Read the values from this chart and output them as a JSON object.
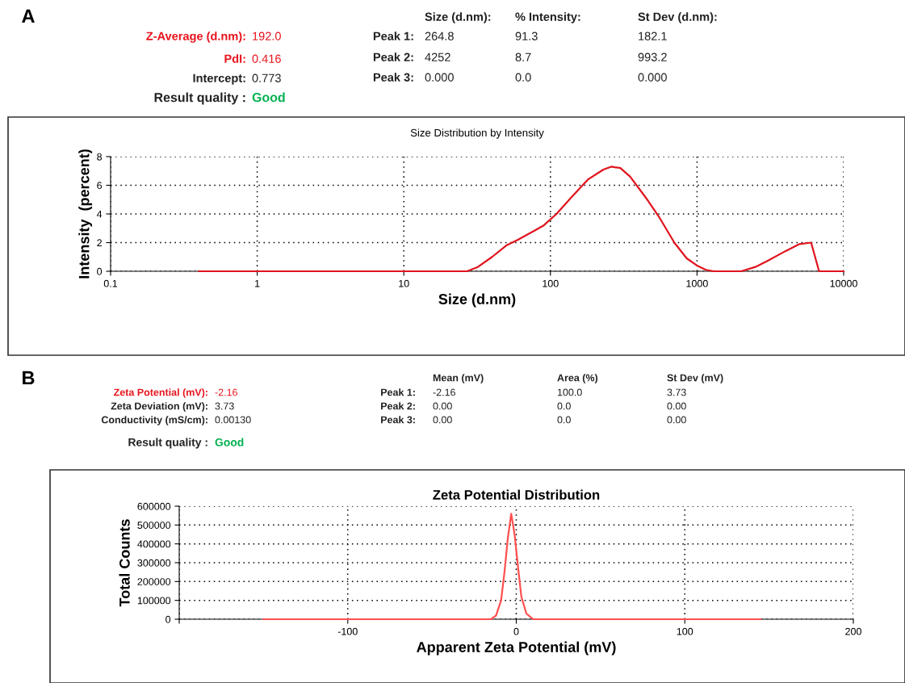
{
  "chart_data": [
    {
      "type": "other",
      "title": "A",
      "annotations": [
        "Z-Average (d.nm):",
        "192.0",
        "PdI:",
        "0.416",
        "Intercept:",
        "0.773",
        "Result quality :",
        "Good",
        "Size (d.nm):",
        "% Intensity:",
        "St Dev (d.nm):",
        "Peak 1:",
        "264.8",
        "91.3",
        "182.1",
        "Peak 2:",
        "4252",
        "8.7",
        "993.2",
        "Peak 3:",
        "0.000",
        "0.0",
        "0.000"
      ]
    },
    {
      "type": "line",
      "title": "Size Distribution by Intensity",
      "xlabel": "Size (d.nm)",
      "ylabel": "Intensity  (percent)",
      "log": "x",
      "grid": true,
      "xlim": [
        0.1,
        10000
      ],
      "ylim": [
        0,
        8
      ],
      "xticks": [
        0.1,
        1,
        10,
        100,
        1000,
        10000
      ],
      "yticks": [
        0,
        2,
        4,
        6,
        8
      ],
      "series": [
        {
          "color": "#e0141e",
          "x": [
            0.4,
            27,
            32,
            40,
            50,
            60,
            80,
            90,
            110,
            140,
            180,
            230,
            260,
            300,
            350,
            450,
            550,
            700,
            850,
            1000,
            1150,
            1300,
            2000,
            2500,
            3000,
            4000,
            5000,
            6000,
            6800,
            10000
          ],
          "values": [
            0,
            0,
            0.3,
            1.0,
            1.8,
            2.2,
            2.9,
            3.2,
            4.0,
            5.2,
            6.4,
            7.1,
            7.3,
            7.2,
            6.6,
            5.1,
            3.8,
            2.0,
            0.9,
            0.4,
            0.1,
            0,
            0,
            0.3,
            0.7,
            1.4,
            1.9,
            2.0,
            0,
            0
          ]
        }
      ]
    },
    {
      "type": "other",
      "title": "B",
      "annotations": [
        "Zeta Potential (mV):",
        "-2.16",
        "Zeta Deviation (mV):",
        "3.73",
        "Conductivity (mS/cm):",
        "0.00130",
        "Result quality :",
        "Good",
        "Mean (mV)",
        "Area (%)",
        "St Dev (mV)",
        "Peak 1:",
        "-2.16",
        "100.0",
        "3.73",
        "Peak 2:",
        "0.00",
        "0.0",
        "0.00",
        "Peak 3:",
        "0.00",
        "0.0",
        "0.00"
      ]
    },
    {
      "type": "line",
      "title": "Zeta Potential Distribution",
      "xlabel": "Apparent Zeta Potential (mV)",
      "ylabel": "Total Counts",
      "grid": true,
      "xlim": [
        -200,
        200
      ],
      "ylim": [
        0,
        600000
      ],
      "xticks": [
        {
          "value": -200,
          "label": null
        },
        -100,
        0,
        100,
        200
      ],
      "yticks": [
        0,
        100000,
        200000,
        300000,
        400000,
        500000,
        600000
      ],
      "series": [
        {
          "color": "#ff5050",
          "x": [
            -150,
            -15,
            -12,
            -9,
            -7,
            -5,
            -3,
            -1,
            1,
            3,
            6,
            10,
            145
          ],
          "values": [
            0,
            0,
            20000,
            100000,
            250000,
            430000,
            560000,
            450000,
            280000,
            120000,
            30000,
            0,
            0
          ]
        }
      ]
    }
  ]
}
